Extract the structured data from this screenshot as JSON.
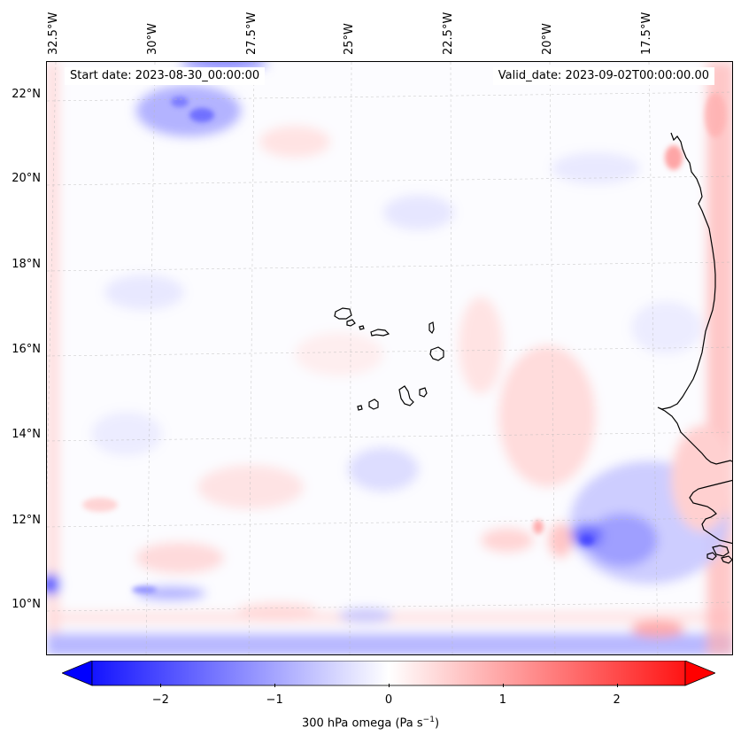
{
  "map": {
    "start_date": "Start date: 2023-08-30_00:00:00",
    "valid_date": "Valid_date: 2023-09-02T00:00:00.00",
    "longitude_labels": [
      "32.5°W",
      "30°W",
      "27.5°W",
      "25°W",
      "22.5°W",
      "20°W",
      "17.5°W"
    ],
    "latitude_labels": [
      "22°N",
      "20°N",
      "18°N",
      "16°N",
      "14°N",
      "12°N",
      "10°N"
    ],
    "lon_range": [
      -32.8,
      -16.0
    ],
    "lat_range": [
      8.9,
      22.7
    ],
    "gridlines": true,
    "colormap": "bwr",
    "colors": {
      "negative": "#0000ff",
      "zero": "#ffffff",
      "positive": "#ff0000",
      "coast": "#000000"
    }
  },
  "colorbar": {
    "ticks": [
      "−2",
      "−1",
      "0",
      "1",
      "2"
    ],
    "tick_values": [
      -2,
      -1,
      0,
      1,
      2
    ],
    "range": [
      -2.6,
      2.6
    ],
    "extend": "both",
    "label": "300 hPa omega (Pa s",
    "label_sup": "−1",
    "label_close": ")"
  }
}
